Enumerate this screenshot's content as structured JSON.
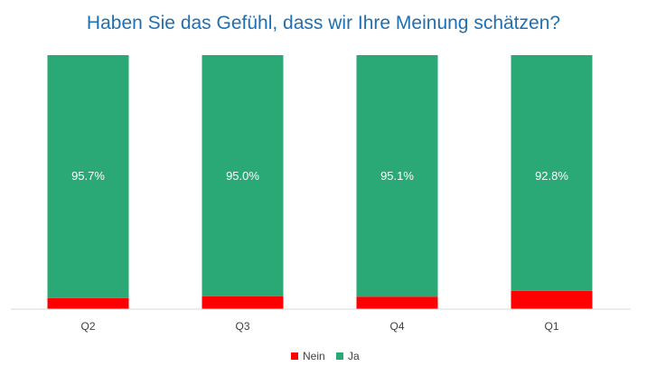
{
  "chart_data": {
    "type": "bar",
    "stacked": true,
    "percent_stacked": true,
    "title": "Haben Sie das Gefühl, dass wir Ihre Meinung schätzen?",
    "categories": [
      "Q2",
      "Q3",
      "Q4",
      "Q1"
    ],
    "series": [
      {
        "name": "Nein",
        "color": "#FF0000",
        "values": [
          4.3,
          5.0,
          4.9,
          7.2
        ],
        "labels": [
          "",
          "",
          "",
          ""
        ]
      },
      {
        "name": "Ja",
        "color": "#2AA876",
        "values": [
          95.7,
          95.0,
          95.1,
          92.8
        ],
        "labels": [
          "95.7%",
          "95.0%",
          "95.1%",
          "92.8%"
        ]
      }
    ],
    "ylim": [
      0,
      100
    ],
    "grid": false,
    "legend_position": "bottom"
  }
}
